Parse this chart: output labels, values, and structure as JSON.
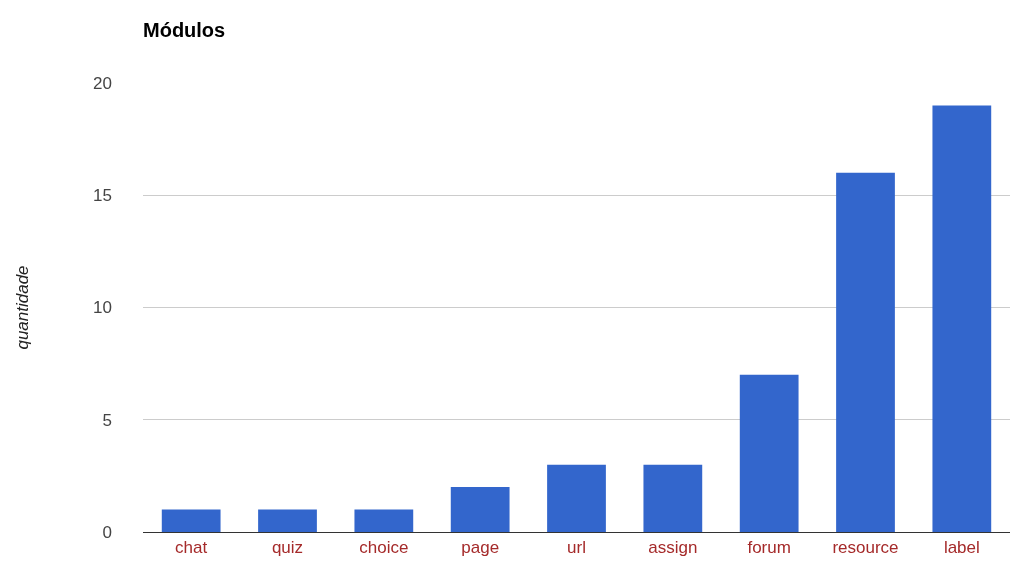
{
  "chart_data": {
    "type": "bar",
    "title": "Módulos",
    "ylabel": "quantidade",
    "categories": [
      "chat",
      "quiz",
      "choice",
      "page",
      "url",
      "assign",
      "forum",
      "resource",
      "label"
    ],
    "values": [
      1,
      1,
      1,
      2,
      3,
      3,
      7,
      16,
      19
    ],
    "color": "#3366cc",
    "ylim": [
      0,
      20
    ],
    "yticks": [
      0,
      5,
      10,
      15,
      20
    ],
    "grid": "y",
    "legend": false
  }
}
